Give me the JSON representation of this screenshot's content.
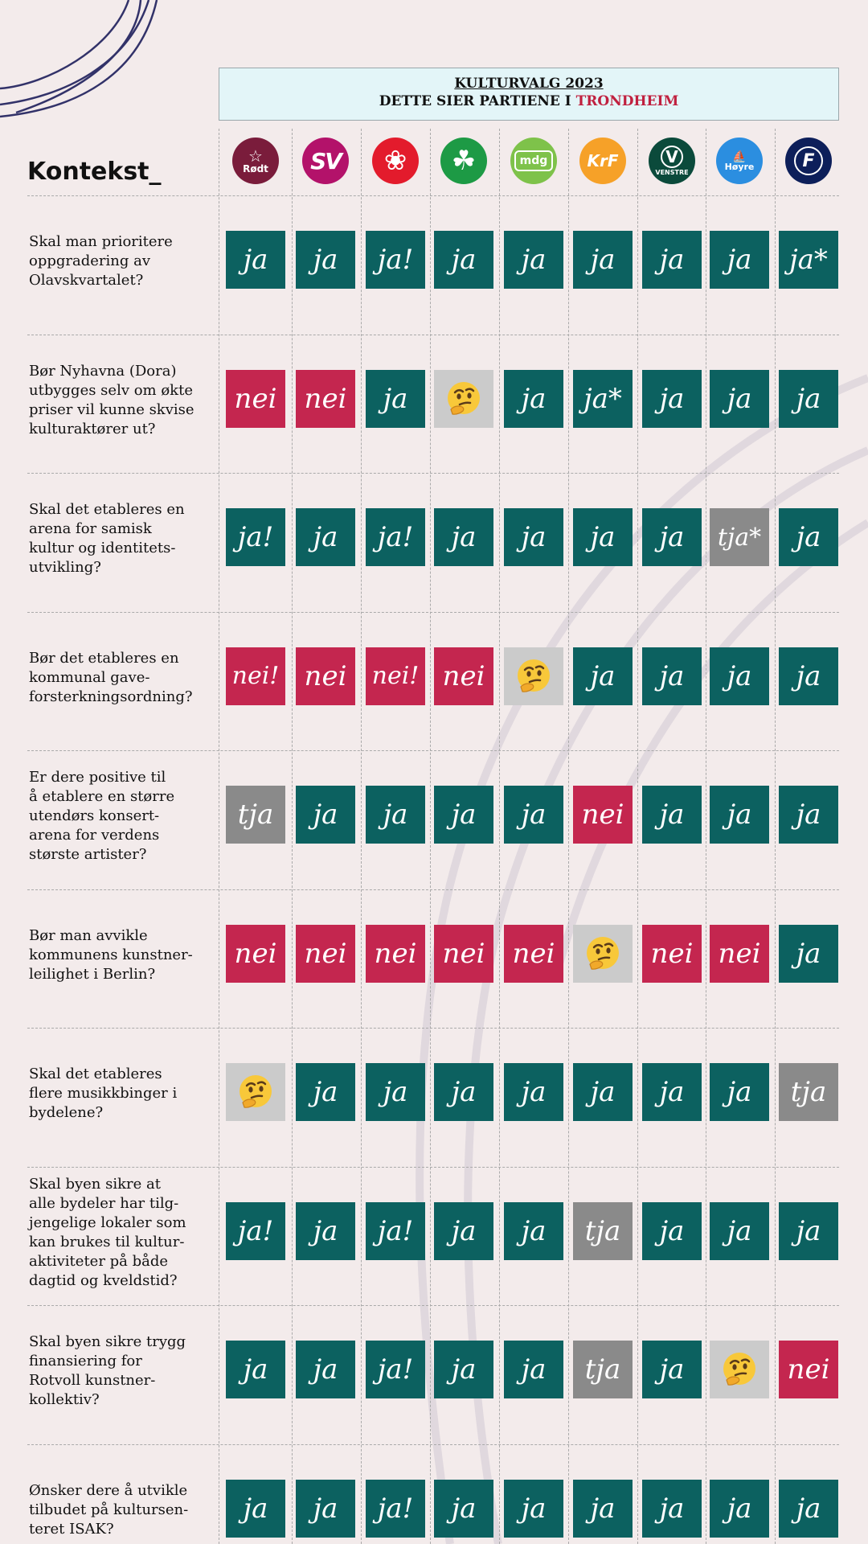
{
  "header": {
    "title": "KULTURVALG 2023",
    "subtitle_prefix": "DETTE SIER PARTIENE I ",
    "subtitle_city": "TRONDHEIM"
  },
  "brand": "Kontekst_",
  "colors": {
    "ja": "#0c6160",
    "nei": "#c4264f",
    "tja": "#8a8a8a",
    "unsure": "#cbcbcb",
    "accent": "#c0203f"
  },
  "parties": [
    {
      "name": "Rødt",
      "logo_text": "Rødt",
      "color": "#7a1c3b",
      "icon": "star-logo"
    },
    {
      "name": "SV",
      "logo_text": "SV",
      "color": "#b3126a",
      "icon": "sv-logo"
    },
    {
      "name": "Ap",
      "logo_text": "",
      "color": "#e31b2c",
      "icon": "rose-logo"
    },
    {
      "name": "Sp",
      "logo_text": "",
      "color": "#1d9a45",
      "icon": "clover-logo"
    },
    {
      "name": "MDG",
      "logo_text": "mdg",
      "color": "#7ec24a",
      "icon": "mdg-logo"
    },
    {
      "name": "KrF",
      "logo_text": "KrF",
      "color": "#f6a128",
      "icon": "krf-logo"
    },
    {
      "name": "Venstre",
      "logo_text": "VENSTRE",
      "color": "#0b4a3b",
      "icon": "venstre-logo"
    },
    {
      "name": "Høyre",
      "logo_text": "Høyre",
      "color": "#2b8ee0",
      "icon": "hoyre-logo"
    },
    {
      "name": "FrP",
      "logo_text": "F",
      "color": "#0d1f5a",
      "icon": "frp-logo"
    }
  ],
  "questions": [
    {
      "text": "Skal man prioritere\noppgradering av\nOlavskvartalet?",
      "answers": [
        "ja",
        "ja",
        "ja!",
        "ja",
        "ja",
        "ja",
        "ja",
        "ja",
        "ja*"
      ]
    },
    {
      "text": "Bør Nyhavna (Dora)\nutbygges selv om økte\npriser vil kunne skvise\nkulturaktører ut?",
      "answers": [
        "nei",
        "nei",
        "ja",
        "?",
        "ja",
        "ja*",
        "ja",
        "ja",
        "ja"
      ]
    },
    {
      "text": "Skal det etableres en\narena for samisk\nkultur og identitets-\nutvikling?",
      "answers": [
        "ja!",
        "ja",
        "ja!",
        "ja",
        "ja",
        "ja",
        "ja",
        "tja*",
        "ja"
      ]
    },
    {
      "text": "Bør det etableres en\nkommunal gave-\nforsterkningsordning?",
      "answers": [
        "nei!",
        "nei",
        "nei!",
        "nei",
        "?",
        "ja",
        "ja",
        "ja",
        "ja"
      ]
    },
    {
      "text": "Er dere positive til\nå etablere en større\nutendørs konsert-\narena for verdens\nstørste artister?",
      "answers": [
        "tja",
        "ja",
        "ja",
        "ja",
        "ja",
        "nei",
        "ja",
        "ja",
        "ja"
      ]
    },
    {
      "text": "Bør man avvikle\nkommunens kunstner-\nleilighet i Berlin?",
      "answers": [
        "nei",
        "nei",
        "nei",
        "nei",
        "nei",
        "?",
        "nei",
        "nei",
        "ja"
      ]
    },
    {
      "text": "Skal det etableres\nflere musikkbinger i\nbydelene?",
      "answers": [
        "?",
        "ja",
        "ja",
        "ja",
        "ja",
        "ja",
        "ja",
        "ja",
        "tja"
      ]
    },
    {
      "text": "Skal byen sikre at\nalle bydeler har tilg-\njengelige lokaler som\nkan brukes til kultur-\naktiviteter på både\ndagtid og kveldstid?",
      "answers": [
        "ja!",
        "ja",
        "ja!",
        "ja",
        "ja",
        "tja",
        "ja",
        "ja",
        "ja"
      ]
    },
    {
      "text": "Skal byen sikre trygg\nfinansiering for\nRotvoll kunstner-\nkollektiv?",
      "answers": [
        "ja",
        "ja",
        "ja!",
        "ja",
        "ja",
        "tja",
        "ja",
        "?",
        "nei"
      ]
    },
    {
      "text": "Ønsker dere å utvikle\ntilbudet på kultursen-\nteret ISAK?",
      "answers": [
        "ja",
        "ja",
        "ja!",
        "ja",
        "ja",
        "ja",
        "ja",
        "ja",
        "ja"
      ]
    }
  ]
}
